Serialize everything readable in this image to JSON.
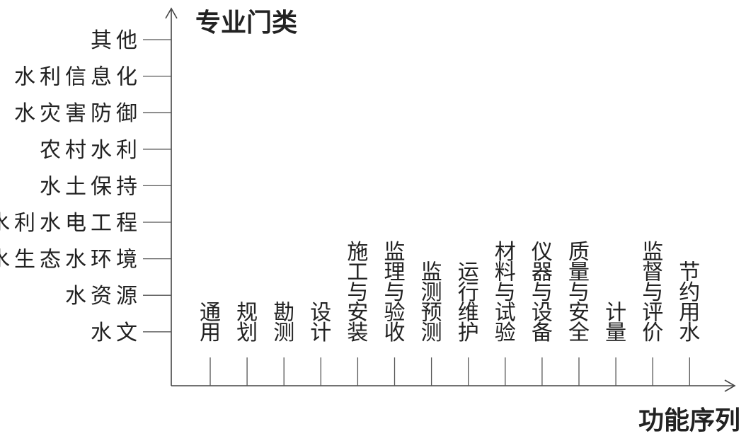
{
  "y_axis_title": "专业门类",
  "x_axis_title": "功能序列",
  "y_categories": [
    "其他",
    "水利信息化",
    "水灾害防御",
    "农村水利",
    "水土保持",
    "水利水电工程",
    "水生态水环境",
    "水资源",
    "水文"
  ],
  "x_categories": [
    "通用",
    "规划",
    "勘测",
    "设计",
    "施工与安装",
    "监理与验收",
    "监测预测",
    "运行维护",
    "材料与试验",
    "仪器与设备",
    "质量与安全",
    "计量",
    "监督与评价",
    "节约用水"
  ]
}
